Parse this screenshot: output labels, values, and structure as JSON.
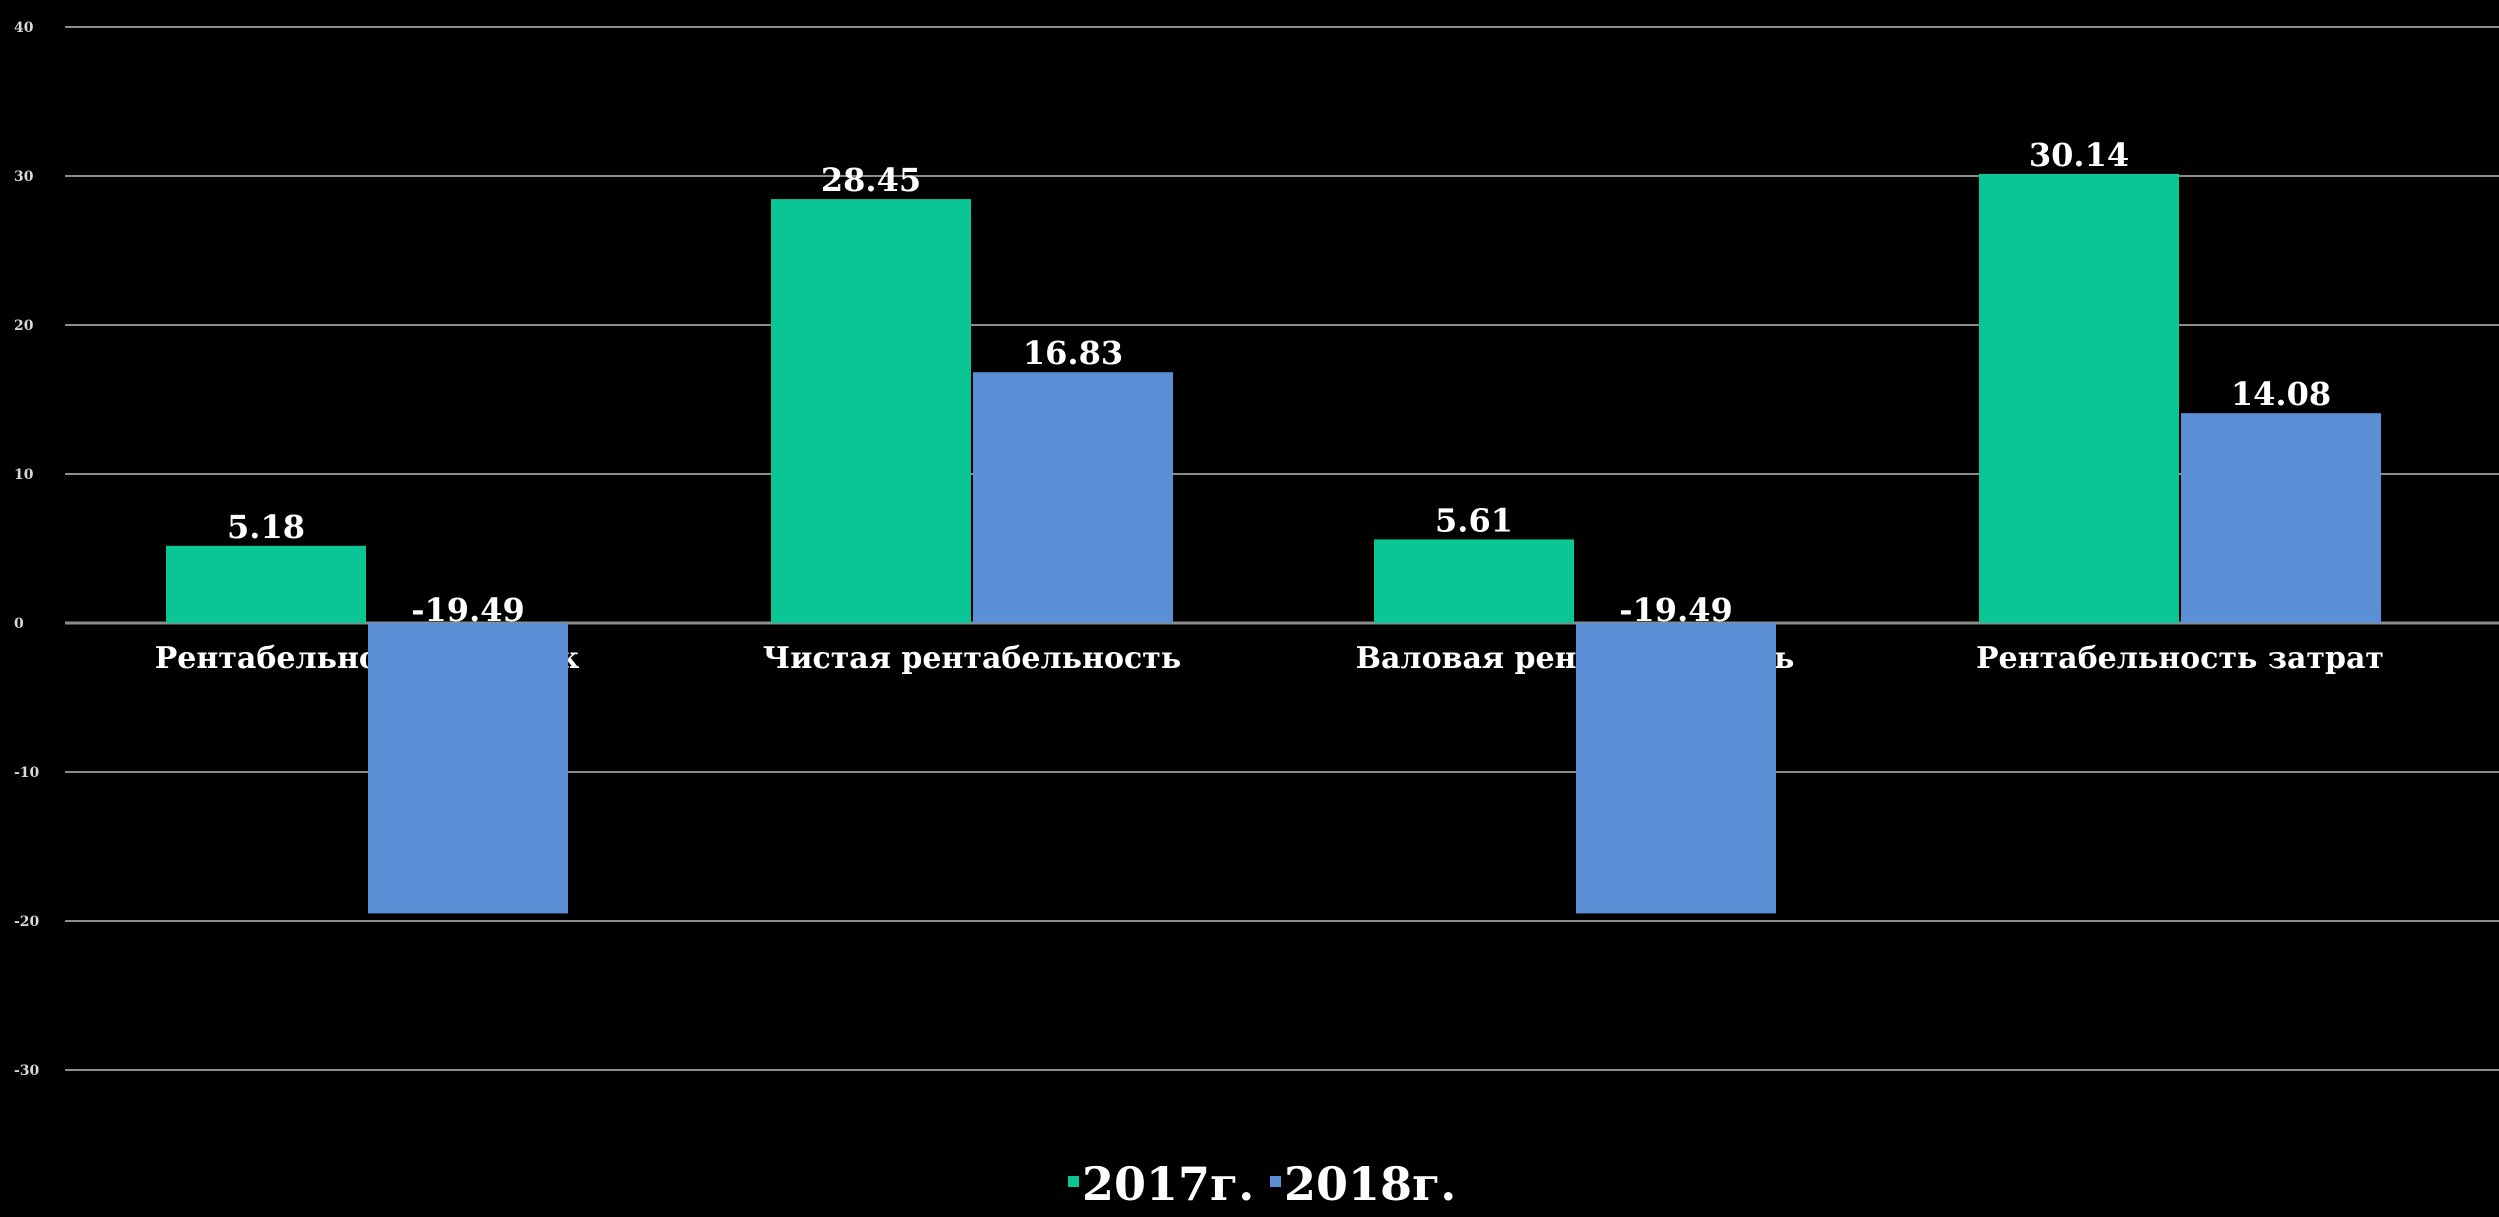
{
  "chart_data": {
    "type": "bar",
    "title": "",
    "xlabel": "",
    "ylabel": "",
    "ylim": [
      -30,
      40
    ],
    "yticks": [
      40,
      30,
      20,
      10,
      0,
      -10,
      -20,
      -30
    ],
    "ytick_labels": [
      "40",
      "30",
      "20",
      "10",
      "0",
      "-10",
      "-20",
      "-30"
    ],
    "grid": true,
    "legend_position": "bottom",
    "categories": [
      "Рентабельность продаж",
      "Чистая рентабельность",
      "Валовая рентабельность",
      "Рентабельность затрат"
    ],
    "series": [
      {
        "name": "2017г.",
        "color": "#0ac694",
        "values": [
          5.18,
          28.45,
          5.61,
          30.14
        ],
        "labels": [
          "5.18",
          "28.45",
          "5.61",
          "30.14"
        ]
      },
      {
        "name": "2018г.",
        "color": "#5b8fd6",
        "values": [
          -19.49,
          16.83,
          -19.49,
          14.08
        ],
        "labels": [
          "-19.49",
          "16.83",
          "-19.49",
          "14.08"
        ]
      }
    ]
  },
  "colors": {
    "background": "#000000",
    "gridline": "#8c8c8c",
    "text": "#ffffff"
  }
}
